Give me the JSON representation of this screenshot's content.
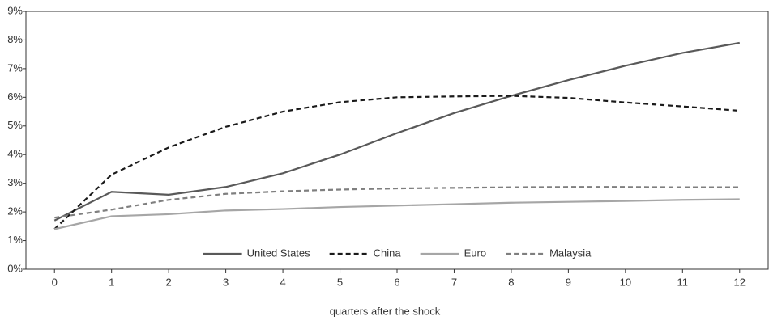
{
  "chart_data": {
    "type": "line",
    "x_label": "quarters after the shock",
    "x": [
      0,
      1,
      2,
      3,
      4,
      5,
      6,
      7,
      8,
      9,
      10,
      11,
      12
    ],
    "xlim": [
      -0.5,
      12.5
    ],
    "xticks": [
      0,
      1,
      2,
      3,
      4,
      5,
      6,
      7,
      8,
      9,
      10,
      11,
      12
    ],
    "ylim": [
      0,
      9
    ],
    "yticks": [
      {
        "value": 0,
        "label": "0%"
      },
      {
        "value": 1,
        "label": "1%"
      },
      {
        "value": 2,
        "label": "2%"
      },
      {
        "value": 3,
        "label": "3%"
      },
      {
        "value": 4,
        "label": "4%"
      },
      {
        "value": 5,
        "label": "5%"
      },
      {
        "value": 6,
        "label": "6%"
      },
      {
        "value": 7,
        "label": "7%"
      },
      {
        "value": 8,
        "label": "8%"
      },
      {
        "value": 9,
        "label": "9%"
      }
    ],
    "legend": "bottom",
    "series": [
      {
        "name": "United States",
        "color": "#595959",
        "dashed": false,
        "values": [
          1.7,
          2.7,
          2.6,
          2.87,
          3.35,
          4.0,
          4.75,
          5.45,
          6.05,
          6.6,
          7.1,
          7.55,
          7.9
        ]
      },
      {
        "name": "China",
        "color": "#1a1a1a",
        "dashed": true,
        "values": [
          1.4,
          3.3,
          4.25,
          4.97,
          5.5,
          5.83,
          6.0,
          6.03,
          6.05,
          5.98,
          5.82,
          5.68,
          5.53
        ]
      },
      {
        "name": "Euro",
        "color": "#a6a6a6",
        "dashed": false,
        "values": [
          1.4,
          1.85,
          1.92,
          2.05,
          2.1,
          2.17,
          2.22,
          2.27,
          2.32,
          2.35,
          2.38,
          2.42,
          2.44
        ]
      },
      {
        "name": "Malaysia",
        "color": "#7f7f7f",
        "dashed": true,
        "values": [
          1.8,
          2.08,
          2.42,
          2.63,
          2.72,
          2.78,
          2.82,
          2.84,
          2.86,
          2.87,
          2.87,
          2.86,
          2.86
        ]
      }
    ]
  }
}
